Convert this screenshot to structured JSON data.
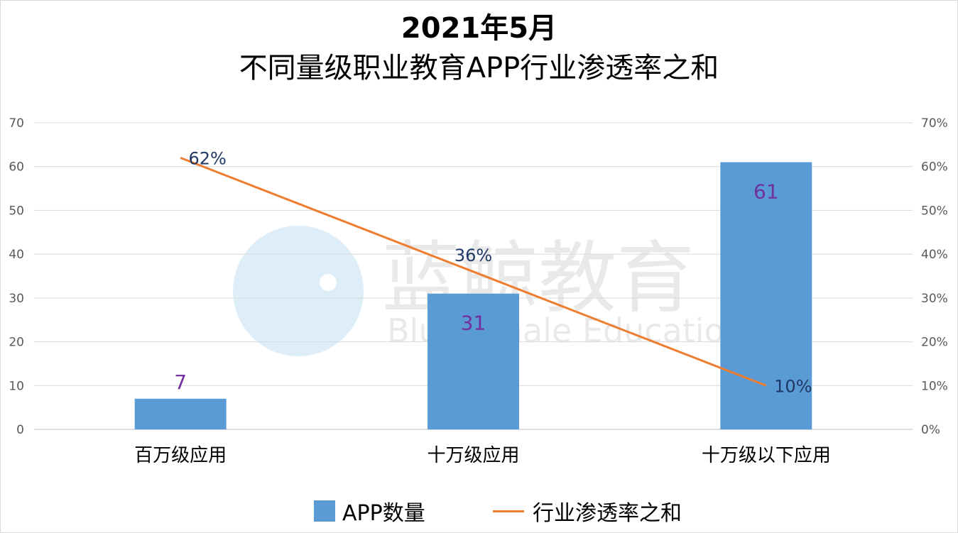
{
  "title_line1": "2021年5月",
  "title_line2": "不同量级职业教育APP行业渗透率之和",
  "watermark": {
    "cn": "蓝鲸教育",
    "en": "Blue Whale Education"
  },
  "chart_data": {
    "type": "bar",
    "categories": [
      "百万级应用",
      "十万级应用",
      "十万级以下应用"
    ],
    "series": [
      {
        "name": "APP数量",
        "type": "bar",
        "axis": "left",
        "values": [
          7,
          31,
          61
        ],
        "labels": [
          "7",
          "31",
          "61"
        ],
        "color": "#5b9bd5",
        "label_color": "#7030a0"
      },
      {
        "name": "行业渗透率之和",
        "type": "line",
        "axis": "right",
        "values": [
          0.62,
          0.36,
          0.1
        ],
        "labels": [
          "62%",
          "36%",
          "10%"
        ],
        "color": "#ed7d31",
        "label_color": "#1f3864"
      }
    ],
    "y_left": {
      "min": 0,
      "max": 70,
      "ticks": [
        "0",
        "10",
        "20",
        "30",
        "40",
        "50",
        "60",
        "70"
      ]
    },
    "y_right": {
      "min": 0,
      "max": 0.7,
      "ticks": [
        "0%",
        "10%",
        "20%",
        "30%",
        "40%",
        "50%",
        "60%",
        "70%"
      ]
    },
    "grid": true,
    "legend_position": "bottom"
  },
  "legend": {
    "bar_label": "APP数量",
    "line_label": "行业渗透率之和"
  }
}
